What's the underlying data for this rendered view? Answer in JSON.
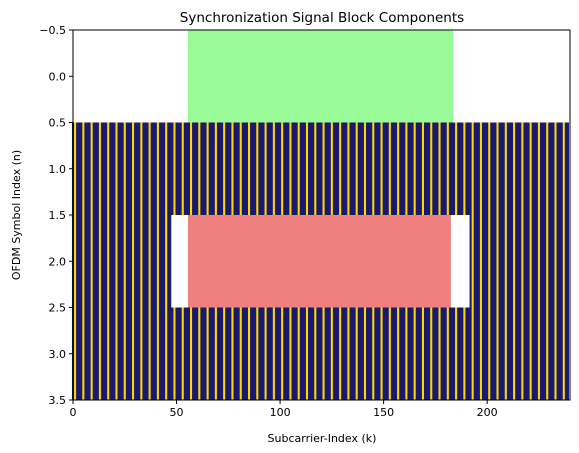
{
  "chart_data": {
    "type": "heatmap",
    "title": "Synchronization Signal Block Components",
    "xlabel": "Subcarrier-Index (k)",
    "ylabel": "OFDM Symbol Index (n)",
    "xlim": [
      0,
      240
    ],
    "ylim": [
      3.5,
      -0.5
    ],
    "y_inverted": true,
    "grid": false,
    "legend": "none",
    "x_ticks": [
      0,
      50,
      100,
      150,
      200
    ],
    "y_ticks": [
      -0.5,
      0.0,
      0.5,
      1.0,
      1.5,
      2.0,
      2.5,
      3.0,
      3.5
    ],
    "x_tick_labels": [
      "0",
      "50",
      "100",
      "150",
      "200"
    ],
    "y_tick_labels": [
      "−0.5",
      "0.0",
      "0.5",
      "1.0",
      "1.5",
      "2.0",
      "2.5",
      "3.0",
      "3.5"
    ],
    "colors": {
      "background": "#ffffff",
      "pss": "#98fb98",
      "sss": "#f08080",
      "pbch": "#191970",
      "dmrs": "#ffd700",
      "guard": "#ffffff"
    },
    "regions": [
      {
        "component": "pss",
        "k": [
          56,
          183
        ],
        "n": [
          0,
          0
        ]
      },
      {
        "component": "pbch",
        "k": [
          0,
          239
        ],
        "n": [
          1,
          1
        ]
      },
      {
        "component": "pbch",
        "k": [
          0,
          47
        ],
        "n": [
          2,
          2
        ]
      },
      {
        "component": "guard",
        "k": [
          48,
          55
        ],
        "n": [
          2,
          2
        ]
      },
      {
        "component": "sss",
        "k": [
          56,
          182
        ],
        "n": [
          2,
          2
        ]
      },
      {
        "component": "guard",
        "k": [
          183,
          191
        ],
        "n": [
          2,
          2
        ]
      },
      {
        "component": "pbch",
        "k": [
          192,
          239
        ],
        "n": [
          2,
          2
        ]
      },
      {
        "component": "pbch",
        "k": [
          0,
          239
        ],
        "n": [
          3,
          3
        ]
      }
    ],
    "dmrs_pattern": {
      "start_k": 1,
      "step_k": 4,
      "symbols": [
        1,
        2,
        3
      ]
    }
  }
}
